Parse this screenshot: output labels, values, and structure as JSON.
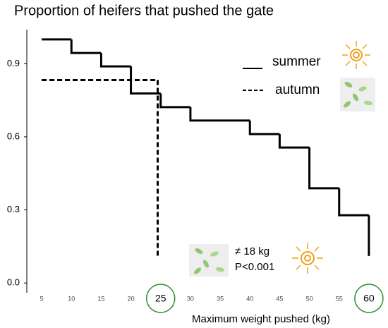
{
  "chart_data": {
    "type": "step",
    "title": "Proportion of heifers that pushed the gate",
    "x_label": "Maximum weight pushed  (kg)",
    "xlim": [
      2.5,
      62.5
    ],
    "ylim": [
      -0.04,
      1.04
    ],
    "xticks": [
      5,
      10,
      15,
      20,
      25,
      30,
      35,
      40,
      45,
      50,
      55,
      60
    ],
    "highlighted_xticks": [
      25,
      60
    ],
    "yticks": [
      {
        "value": 0,
        "label": "0.0"
      },
      0.3,
      0.6,
      0.9
    ],
    "series": [
      {
        "name": "summer",
        "color": "#000000",
        "dash": false,
        "x": [
          5,
          10,
          15,
          20,
          25,
          30,
          40,
          45,
          50,
          55,
          60
        ],
        "values": [
          1.0,
          0.944,
          0.889,
          0.778,
          0.722,
          0.667,
          0.611,
          0.556,
          0.389,
          0.278,
          0.111
        ]
      },
      {
        "name": "autumn",
        "color": "#000000",
        "dash": true,
        "x": [
          5,
          24.5
        ],
        "values": [
          0.833,
          0.111
        ]
      }
    ],
    "annotations": [
      "≠ 18 kg",
      "P<0.001"
    ]
  }
}
